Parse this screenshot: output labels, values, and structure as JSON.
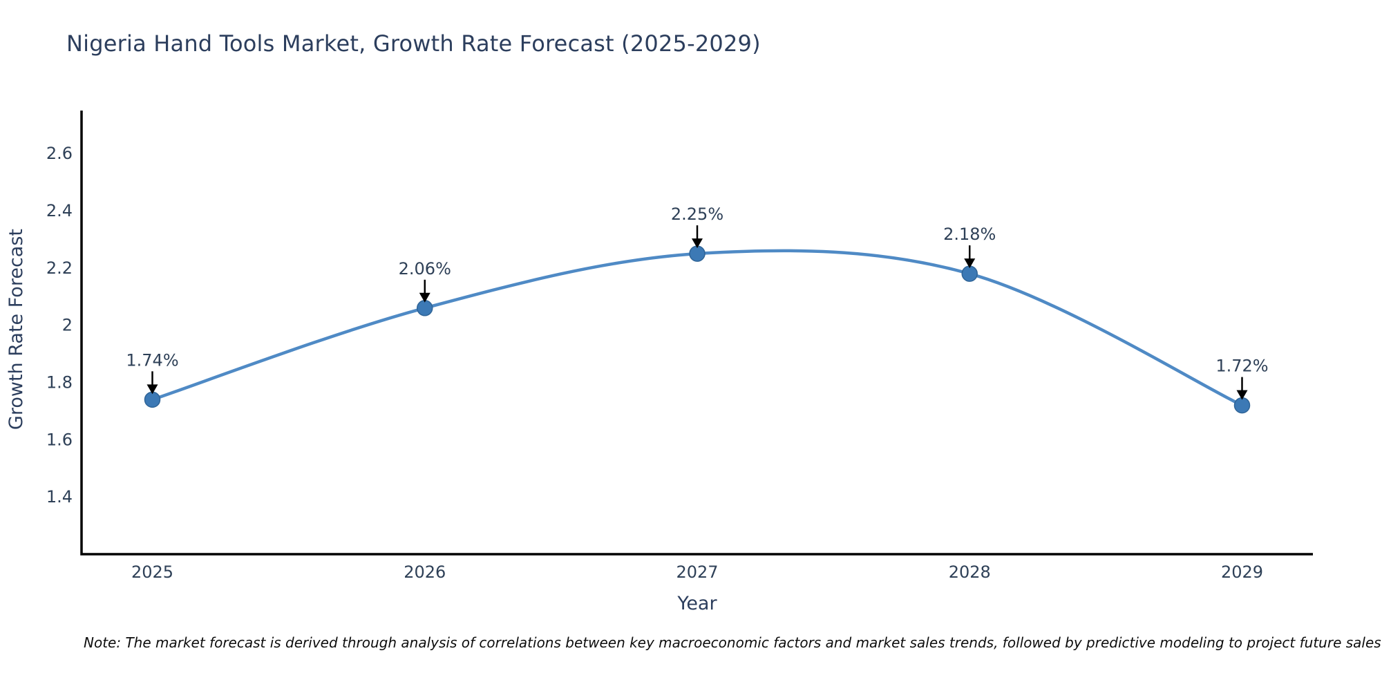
{
  "page": {
    "note": "Note: The market forecast is derived through analysis of correlations between key macroeconomic factors and market sales trends, followed by predictive modeling to project future sales"
  },
  "chart_data": {
    "type": "line",
    "title": "Nigeria Hand Tools Market, Growth Rate Forecast (2025-2029)",
    "xlabel": "Year",
    "ylabel": "Growth Rate Forecast",
    "x": [
      2025,
      2026,
      2027,
      2028,
      2029
    ],
    "categories": [
      "2025",
      "2026",
      "2027",
      "2028",
      "2029"
    ],
    "values": [
      1.74,
      2.06,
      2.25,
      2.18,
      1.72
    ],
    "point_labels": [
      "1.74%",
      "2.06%",
      "2.25%",
      "2.18%",
      "1.72%"
    ],
    "yticks": [
      1.4,
      1.6,
      1.8,
      2.0,
      2.2,
      2.4,
      2.6
    ],
    "ytick_labels": [
      "1.4",
      "1.6",
      "1.8",
      "2",
      "2.2",
      "2.4",
      "2.6"
    ],
    "xlim": [
      2024.74,
      2029.26
    ],
    "ylim": [
      1.2,
      2.75
    ],
    "line_shape": "spline",
    "grid": false,
    "legend": "none",
    "colors": {
      "line": "#4f8ac5",
      "marker": "#3c79b5",
      "marker_edge": "#2f6497",
      "axis": "#000000",
      "text": "#2e4057",
      "annotation_arrow": "#000000",
      "background": "#ffffff"
    }
  }
}
